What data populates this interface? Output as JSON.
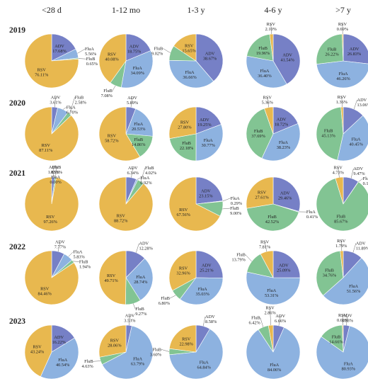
{
  "chart_data": {
    "type": "pie",
    "columns": [
      "<28 d",
      "1-12 mo",
      "1-3 y",
      "4-6 y",
      ">7 y"
    ],
    "rows": [
      "2019",
      "2020",
      "2021",
      "2022",
      "2023"
    ],
    "categories": [
      "RSV",
      "ADV",
      "FluA",
      "FluB"
    ],
    "colors": {
      "RSV": "#e8b84f",
      "ADV": "#7680c6",
      "FluA": "#8db2e0",
      "FluB": "#82c493"
    },
    "pies": [
      {
        "year": "2019",
        "age": "<28 d",
        "values": {
          "RSV": 76.11,
          "ADV": 17.68,
          "FluA": 5.56,
          "FluB": 0.65
        },
        "labels": {
          "RSV": "76.11%",
          "ADV": "17.68%",
          "FluA": "5.56%",
          "FluB": "0.65%"
        }
      },
      {
        "year": "2019",
        "age": "1-12 mo",
        "values": {
          "RSV": 40.08,
          "ADV": 18.75,
          "FluA": 34.09,
          "FluB": 7.08
        },
        "labels": {
          "RSV": "40.08%",
          "ADV": "18.75%",
          "FluA": "34.09%",
          "FluB": "7.08%"
        }
      },
      {
        "year": "2019",
        "age": "1-3 y",
        "values": {
          "RSV": 15.65,
          "ADV": 38.67,
          "FluA": 36.66,
          "FluB": 9.02
        },
        "labels": {
          "RSV": "15.65%",
          "ADV": "38.67%",
          "FluA": "36.66%",
          "FluB": "9.02%"
        }
      },
      {
        "year": "2019",
        "age": "4-6 y",
        "values": {
          "RSV": 2.1,
          "ADV": 41.54,
          "FluA": 36.4,
          "FluB": 19.96
        },
        "labels": {
          "RSV": "2.10%",
          "ADV": "41.54%",
          "FluA": "36.40%",
          "FluB": "19.96%"
        }
      },
      {
        "year": "2019",
        "age": ">7 y",
        "values": {
          "RSV": 0.69,
          "ADV": 26.83,
          "FluA": 46.26,
          "FluB": 26.22
        },
        "labels": {
          "RSV": "0.69%",
          "ADV": "26.83%",
          "FluA": "46.26%",
          "FluB": "26.22%"
        }
      },
      {
        "year": "2020",
        "age": "<28 d",
        "values": {
          "RSV": 87.11,
          "ADV": 3.61,
          "FluA": 6.7,
          "FluB": 2.58
        },
        "labels": {
          "RSV": "87.11%",
          "ADV": "3.61%",
          "FluA": "6.70%",
          "FluB": "2.58%"
        }
      },
      {
        "year": "2020",
        "age": "1-12 mo",
        "values": {
          "RSV": 58.72,
          "ADV": 5.89,
          "FluA": 20.53,
          "FluB": 14.86
        },
        "labels": {
          "RSV": "58.72%",
          "ADV": "5.89%",
          "FluA": "20.53%",
          "FluB": "14.86%"
        }
      },
      {
        "year": "2020",
        "age": "1-3 y",
        "values": {
          "RSV": 27.8,
          "ADV": 19.25,
          "FluA": 30.77,
          "FluB": 22.18
        },
        "labels": {
          "RSV": "27.80%",
          "ADV": "19.25%",
          "FluA": "30.77%",
          "FluB": "22.18%"
        }
      },
      {
        "year": "2020",
        "age": "4-6 y",
        "values": {
          "RSV": 5.36,
          "ADV": 18.72,
          "FluA": 38.23,
          "FluB": 37.69
        },
        "labels": {
          "RSV": "5.36%",
          "ADV": "18.72%",
          "FluA": "38.23%",
          "FluB": "37.69%"
        }
      },
      {
        "year": "2020",
        "age": ">7 y",
        "values": {
          "RSV": 1.36,
          "ADV": 13.06,
          "FluA": 40.45,
          "FluB": 45.13
        },
        "labels": {
          "RSV": "1.36%",
          "ADV": "13.06%",
          "FluA": "40.45%",
          "FluB": "45.13%"
        }
      },
      {
        "year": "2021",
        "age": "<28 d",
        "values": {
          "RSV": 97.26,
          "ADV": 1.83,
          "FluA": 0.0,
          "FluB": 0.91
        },
        "labels": {
          "RSV": "97.26%",
          "ADV": "1.83%",
          "FluA": "0.00%",
          "FluB": "0.91%"
        }
      },
      {
        "year": "2021",
        "age": "1-12 mo",
        "values": {
          "RSV": 88.72,
          "ADV": 6.34,
          "FluA": 0.92,
          "FluB": 4.02
        },
        "labels": {
          "RSV": "88.72%",
          "ADV": "6.34%",
          "FluA": "0.92%",
          "FluB": "4.02%"
        }
      },
      {
        "year": "2021",
        "age": "1-3 y",
        "values": {
          "RSV": 67.56,
          "ADV": 23.15,
          "FluA": 0.29,
          "FluB": 9.0
        },
        "labels": {
          "RSV": "67.56%",
          "ADV": "23.15%",
          "FluA": "0.29%",
          "FluB": "9.00%"
        }
      },
      {
        "year": "2021",
        "age": "4-6 y",
        "values": {
          "RSV": 27.61,
          "ADV": 29.46,
          "FluA": 0.41,
          "FluB": 42.52
        },
        "labels": {
          "RSV": "27.61%",
          "ADV": "29.46%",
          "FluA": "0.41%",
          "FluB": "42.52%"
        }
      },
      {
        "year": "2021",
        "age": ">7 y",
        "values": {
          "RSV": 4.73,
          "ADV": 9.47,
          "FluA": 0.13,
          "FluB": 85.67
        },
        "labels": {
          "RSV": "4.73%",
          "ADV": "9.47%",
          "FluA": "0.13%",
          "FluB": "85.67%"
        }
      },
      {
        "year": "2022",
        "age": "<28 d",
        "values": {
          "RSV": 84.46,
          "ADV": 7.77,
          "FluA": 5.83,
          "FluB": 1.94
        },
        "labels": {
          "RSV": "84.46%",
          "ADV": "7.77%",
          "FluA": "5.83%",
          "FluB": "1.94%"
        }
      },
      {
        "year": "2022",
        "age": "1-12 mo",
        "values": {
          "RSV": 49.71,
          "ADV": 12.28,
          "FluA": 28.74,
          "FluB": 9.27
        },
        "labels": {
          "RSV": "49.71%",
          "ADV": "12.28%",
          "FluA": "28.74%",
          "FluB": "9.27%"
        }
      },
      {
        "year": "2022",
        "age": "1-3 y",
        "values": {
          "RSV": 32.96,
          "ADV": 25.21,
          "FluA": 35.03,
          "FluB": 6.8
        },
        "labels": {
          "RSV": "32.96%",
          "ADV": "25.21%",
          "FluA": "35.03%",
          "FluB": "6.80%"
        }
      },
      {
        "year": "2022",
        "age": "4-6 y",
        "values": {
          "RSV": 7.81,
          "ADV": 25.09,
          "FluA": 53.31,
          "FluB": 13.79
        },
        "labels": {
          "RSV": "7.81%",
          "ADV": "25.09%",
          "FluA": "53.31%",
          "FluB": "13.79%"
        }
      },
      {
        "year": "2022",
        "age": ">7 y",
        "values": {
          "RSV": 1.79,
          "ADV": 11.89,
          "FluA": 51.56,
          "FluB": 34.76
        },
        "labels": {
          "RSV": "1.79%",
          "ADV": "11.89%",
          "FluA": "51.56%",
          "FluB": "34.76%"
        }
      },
      {
        "year": "2023",
        "age": "<28 d",
        "values": {
          "RSV": 43.24,
          "ADV": 16.22,
          "FluA": 40.54,
          "FluB": 0.0
        },
        "labels": {
          "RSV": "43.24%",
          "ADV": "16.22%",
          "FluA": "40.54%",
          "FluB": ""
        }
      },
      {
        "year": "2023",
        "age": "1-12 mo",
        "values": {
          "RSV": 28.06,
          "ADV": 3.53,
          "FluA": 63.79,
          "FluB": 4.63
        },
        "labels": {
          "RSV": "28.06%",
          "ADV": "3.53%",
          "FluA": "63.79%",
          "FluB": "4.63%"
        }
      },
      {
        "year": "2023",
        "age": "1-3 y",
        "values": {
          "RSV": 22.98,
          "ADV": 8.58,
          "FluA": 64.84,
          "FluB": 3.6
        },
        "labels": {
          "RSV": "22.98%",
          "ADV": "8.58%",
          "FluA": "64.84%",
          "FluB": "3.60%"
        }
      },
      {
        "year": "2023",
        "age": "4-6 y",
        "values": {
          "RSV": 2.86,
          "ADV": 6.66,
          "FluA": 84.06,
          "FluB": 6.42
        },
        "labels": {
          "RSV": "2.86%",
          "ADV": "6.66%",
          "FluA": "84.06%",
          "FluB": "6.42%"
        }
      },
      {
        "year": "2023",
        "age": ">7 y",
        "values": {
          "RSV": 0.6,
          "ADV": 3.83,
          "FluA": 80.93,
          "FluB": 14.66
        },
        "labels": {
          "RSV": "0.60%",
          "ADV": "3.83%",
          "FluA": "80.93%",
          "FluB": "14.66%"
        }
      }
    ]
  }
}
